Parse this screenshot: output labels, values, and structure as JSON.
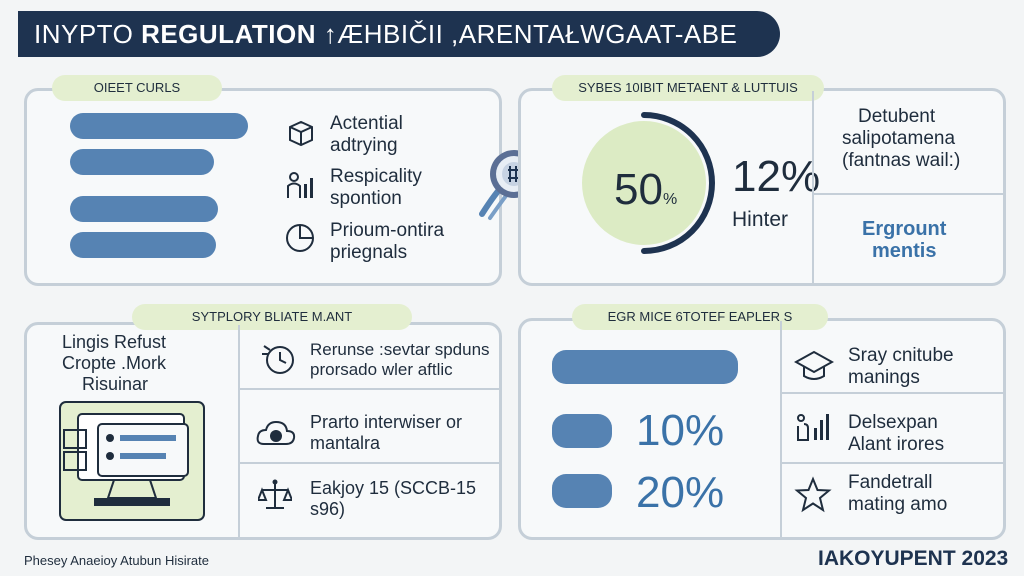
{
  "header": {
    "title_prefix": "INYPTO",
    "title_bold": "REGULATION",
    "title_suffix": "↑ÆHBIČII ,ARENTAŁWGAAT-ABE"
  },
  "panel_tl": {
    "pill": "OIEET CURLS",
    "items": [
      {
        "icon": "cube-icon",
        "line1": "Actential",
        "line2": "adtrying"
      },
      {
        "icon": "people-chart-icon",
        "line1": "Respicality",
        "line2": "spontion"
      },
      {
        "icon": "pie-icon",
        "line1": "Prioum-ontira",
        "line2": "priegnals"
      }
    ],
    "bars": [
      1.0,
      0.81,
      0.83,
      0.82
    ]
  },
  "center_icon": "crypto-coin-icon",
  "panel_tr": {
    "pill": "SYBES 10IBIT METAENT & LUTTUIS",
    "donut_value": "50",
    "donut_unit": "%",
    "donut_fraction": 0.5,
    "stat_value": "12%",
    "stat_label": "Hinter",
    "side_top_line1": "Detubent",
    "side_top_line2": "salipotamena",
    "side_top_line3": "(fantnas wail:)",
    "side_bottom_line1": "Ergrount",
    "side_bottom_line2": "mentis"
  },
  "panel_bl": {
    "pill": "SYTPLORY BLIATE M.ANT",
    "left_line1": "Lingis Refust",
    "left_line2": "Cropte .Mork",
    "left_line3": "Risuinar",
    "items": [
      {
        "icon": "clock-icon",
        "line1": "Rerunse :sevtar spduns",
        "line2": "prorsado wler aftlic"
      },
      {
        "icon": "cloud-coin-icon",
        "line1": "Prarto interwiser or",
        "line2": "mantalra"
      },
      {
        "icon": "scale-icon",
        "line1": "Eakjoy 15 (SCCB-15",
        "line2": "s96)"
      }
    ]
  },
  "panel_br": {
    "pill": "EGR MICE 6TOTEF EAPLER S",
    "bars": [
      {
        "fraction": 1.0,
        "label": ""
      },
      {
        "fraction": 0.32,
        "label": "10%"
      },
      {
        "fraction": 0.32,
        "label": "20%"
      }
    ],
    "items": [
      {
        "icon": "graduation-cap-icon",
        "line1": "Sray cnitube",
        "line2": "manings"
      },
      {
        "icon": "touch-chart-icon",
        "line1": "Delsexpan",
        "line2": "Alant irores"
      },
      {
        "icon": "star-icon",
        "line1": "Fandetrall",
        "line2": "mating amo"
      }
    ]
  },
  "footer": {
    "left": "Phesey Anaeioy Atubun Hisirate",
    "right": "IAKOYUPENT 2023"
  },
  "colors": {
    "navy": "#1e3350",
    "bar_blue": "#5683b3",
    "accent_green": "#e4efd0",
    "border": "#c5cfd8"
  }
}
